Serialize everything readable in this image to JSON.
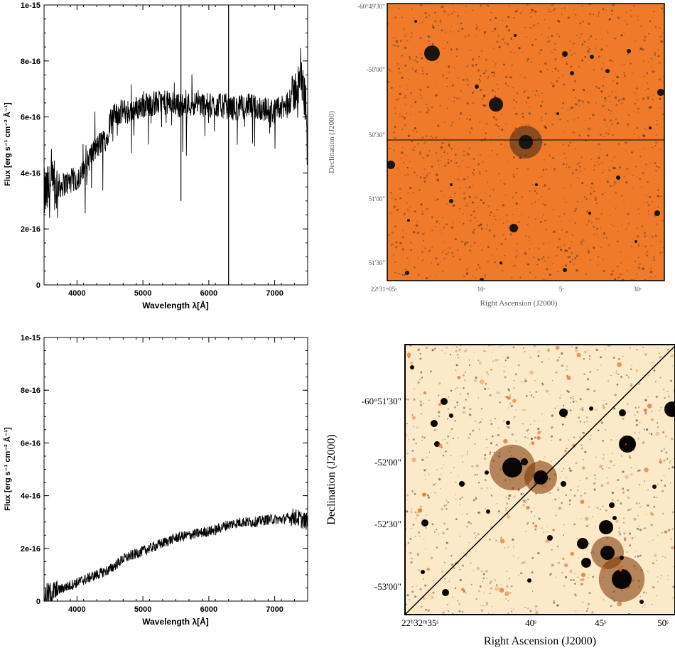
{
  "panels": {
    "spectrum_top": {
      "xlabel": "Wavelength λ[Å]",
      "ylabel": "Flux [erg s⁻¹ cm⁻² Å⁻¹]"
    },
    "spectrum_bottom": {
      "xlabel": "Wavelength λ[Å]",
      "ylabel": "Flux [erg s⁻¹ cm⁻² Å⁻¹]"
    },
    "image_top": {
      "xlabel": "Right Ascension (J2000)",
      "ylabel": "Declination (J2000)",
      "xticks": [
        "22ʰ31ᵐ05ˢ",
        "10ˢ",
        "5ˢ",
        "30ˢ"
      ],
      "yticks": [
        "-60°49'30\"",
        "-50'00\"",
        "50'30\"",
        "51'00\"",
        "51'30\""
      ],
      "bg_color": "#ee7a2a"
    },
    "image_bottom": {
      "xlabel": "Right Ascension (J2000)",
      "ylabel": "Declination (J2000)",
      "xticks": [
        "22ʰ32ᵐ35ˢ",
        "40ˢ",
        "45ˢ",
        "50ˢ"
      ],
      "yticks": [
        "-60°51'30\"",
        "-52'00\"",
        "-52'30\"",
        "-53'00\""
      ],
      "bg_color": "#fbe9c8"
    }
  },
  "chart_data": [
    {
      "type": "line",
      "panel": "spectrum_top",
      "xlabel": "Wavelength λ[Å]",
      "ylabel": "Flux [erg s⁻¹ cm⁻² Å⁻¹]",
      "xlim": [
        3500,
        7500
      ],
      "ylim": [
        0,
        1e-15
      ],
      "xticks": [
        4000,
        5000,
        6000,
        7000
      ],
      "yticks": [
        0,
        2e-16,
        4e-16,
        6e-16,
        8e-16,
        1e-15
      ],
      "ytick_labels": [
        "0",
        "2e-16",
        "4e-16",
        "6e-16",
        "8e-16",
        "1e-15"
      ],
      "x": [
        3500,
        3600,
        3700,
        3800,
        3900,
        4000,
        4100,
        4200,
        4300,
        4400,
        4450,
        4500,
        4600,
        4700,
        4800,
        4900,
        5000,
        5200,
        5400,
        5600,
        5800,
        6000,
        6200,
        6400,
        6600,
        6800,
        7000,
        7200,
        7400,
        7500
      ],
      "y": [
        3.2e-16,
        3.4e-16,
        3.5e-16,
        3.6e-16,
        3.7e-16,
        3.8e-16,
        4e-16,
        4.6e-16,
        4.9e-16,
        5.2e-16,
        5.2e-16,
        5.9e-16,
        6.1e-16,
        6.2e-16,
        6.2e-16,
        6.3e-16,
        6.4e-16,
        6.5e-16,
        6.5e-16,
        6.4e-16,
        6.5e-16,
        6.4e-16,
        6.4e-16,
        6.3e-16,
        6.4e-16,
        6.3e-16,
        6.2e-16,
        6.4e-16,
        7.4e-16,
        6.1e-16
      ],
      "lines": [
        {
          "x": 5577,
          "peak": 1e-15
        },
        {
          "x": 5577,
          "dip": 3e-16
        },
        {
          "x": 6300,
          "peak": 1e-15
        },
        {
          "x": 6300,
          "dip": 0
        }
      ]
    },
    {
      "type": "line",
      "panel": "spectrum_bottom",
      "xlabel": "Wavelength λ[Å]",
      "ylabel": "Flux [erg s⁻¹ cm⁻² Å⁻¹]",
      "xlim": [
        3500,
        7500
      ],
      "ylim": [
        0,
        1e-15
      ],
      "xticks": [
        4000,
        5000,
        6000,
        7000
      ],
      "yticks": [
        0,
        2e-16,
        4e-16,
        6e-16,
        8e-16,
        1e-15
      ],
      "ytick_labels": [
        "0",
        "2e-16",
        "4e-16",
        "6e-16",
        "8e-16",
        "1e-15"
      ],
      "x": [
        3500,
        3700,
        3900,
        4100,
        4300,
        4500,
        4700,
        4900,
        5100,
        5300,
        5500,
        5700,
        5900,
        6100,
        6300,
        6500,
        6700,
        6900,
        7100,
        7300,
        7500
      ],
      "y": [
        2e-17,
        4e-17,
        6e-17,
        8e-17,
        1e-16,
        1.2e-16,
        1.6e-16,
        1.8e-16,
        2e-16,
        2.2e-16,
        2.4e-16,
        2.5e-16,
        2.6e-16,
        2.7e-16,
        2.9e-16,
        3e-16,
        3e-16,
        3.1e-16,
        3.1e-16,
        3.2e-16,
        3e-16
      ]
    }
  ]
}
